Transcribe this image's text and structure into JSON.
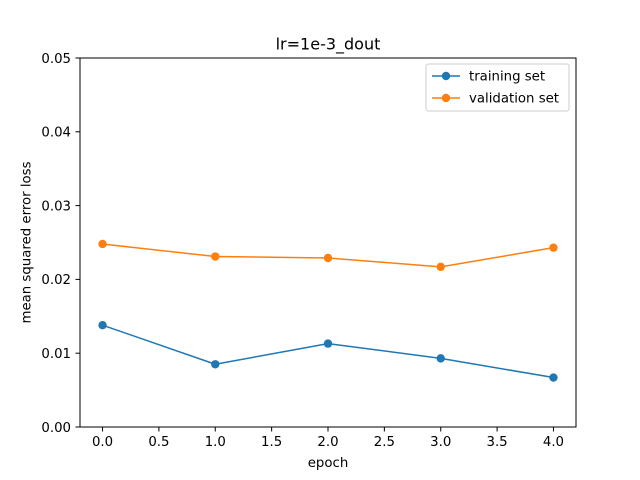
{
  "chart_data": {
    "type": "line",
    "title": "lr=1e-3_dout",
    "xlabel": "epoch",
    "ylabel": "mean squared error loss",
    "x": [
      0,
      1,
      2,
      3,
      4
    ],
    "xlim": [
      -0.2,
      4.2
    ],
    "ylim": [
      0.0,
      0.05
    ],
    "xticks": [
      0.0,
      0.5,
      1.0,
      1.5,
      2.0,
      2.5,
      3.0,
      3.5,
      4.0
    ],
    "xtick_labels": [
      "0.0",
      "0.5",
      "1.0",
      "1.5",
      "2.0",
      "2.5",
      "3.0",
      "3.5",
      "4.0"
    ],
    "yticks": [
      0.0,
      0.01,
      0.02,
      0.03,
      0.04,
      0.05
    ],
    "ytick_labels": [
      "0.00",
      "0.01",
      "0.02",
      "0.03",
      "0.04",
      "0.05"
    ],
    "grid": false,
    "legend_position": "top-right",
    "marker": "circle",
    "series": [
      {
        "name": "training set",
        "color": "#1f77b4",
        "values": [
          0.0138,
          0.0085,
          0.0113,
          0.0093,
          0.0067
        ]
      },
      {
        "name": "validation set",
        "color": "#ff7f0e",
        "values": [
          0.0248,
          0.0231,
          0.0229,
          0.0217,
          0.0243
        ]
      }
    ]
  }
}
